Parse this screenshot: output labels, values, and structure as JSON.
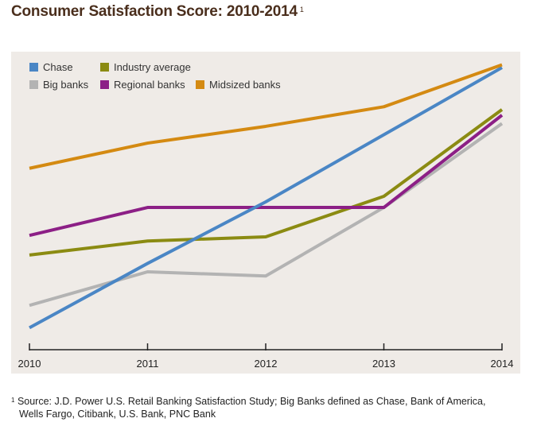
{
  "chart_data": {
    "type": "line",
    "title": "Consumer Satisfaction Score: 2010-2014",
    "title_footnote_mark": "1",
    "categories": [
      "2010",
      "2011",
      "2012",
      "2013",
      "2014"
    ],
    "ylim": [
      0,
      100
    ],
    "grid": false,
    "legend_position": "top-left",
    "series": [
      {
        "name": "Chase",
        "color": "#4a86c5",
        "values": [
          5,
          28,
          50,
          74,
          98
        ]
      },
      {
        "name": "Industry average",
        "color": "#8b8b12",
        "values": [
          31,
          36,
          37.5,
          52,
          83
        ]
      },
      {
        "name": "Big banks",
        "color": "#b3b3b3",
        "values": [
          13,
          25,
          23.5,
          48,
          78
        ]
      },
      {
        "name": "Regional banks",
        "color": "#8c1f86",
        "values": [
          38,
          48,
          48,
          48,
          81
        ]
      },
      {
        "name": "Midsized banks",
        "color": "#d48a12",
        "values": [
          62,
          71,
          77,
          84,
          99
        ]
      }
    ]
  },
  "footnote": {
    "mark": "1",
    "line1": "Source: J.D. Power U.S. Retail Banking Satisfaction Study; Big Banks defined as Chase, Bank of America,",
    "line2": "Wells Fargo, Citibank, U.S. Bank, PNC Bank"
  },
  "colors": {
    "plot_background": "#efebe7",
    "title": "#4a2e1c"
  }
}
